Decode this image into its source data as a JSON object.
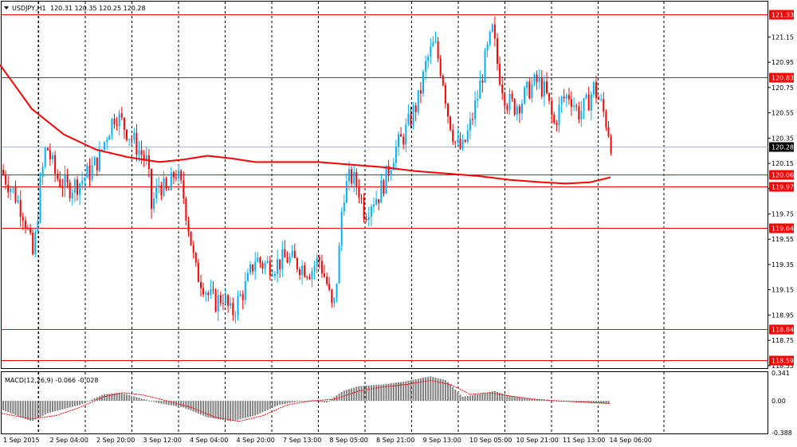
{
  "chart_data": {
    "type": "candlestick",
    "title": "USDJPY,H1",
    "ohlc_label": "120.31 120.35 120.25 120.28",
    "price_axis": {
      "ylim": [
        118.53,
        121.43
      ],
      "ticks": [
        "121.15",
        "120.95",
        "120.75",
        "120.55",
        "120.35",
        "120.15",
        "119.95",
        "119.75",
        "119.55",
        "119.35",
        "119.15",
        "118.95",
        "118.75",
        "118.55"
      ]
    },
    "time_axis": [
      "1 Sep 2015",
      "2 Sep 04:00",
      "2 Sep 20:00",
      "3 Sep 12:00",
      "4 Sep 04:00",
      "4 Sep 20:00",
      "7 Sep 13:00",
      "8 Sep 05:00",
      "8 Sep 21:00",
      "9 Sep 13:00",
      "10 Sep 05:00",
      "10 Sep 21:00",
      "11 Sep 13:00",
      "14 Sep 06:00"
    ],
    "current_price": "120.28",
    "levels": [
      "121.33",
      "120.83",
      "120.06",
      "119.97",
      "119.64",
      "118.84",
      "118.59"
    ],
    "ma_series": [
      [
        0,
        120.93
      ],
      [
        40,
        120.58
      ],
      [
        80,
        120.38
      ],
      [
        120,
        120.26
      ],
      [
        160,
        120.2
      ],
      [
        200,
        120.16
      ],
      [
        230,
        120.18
      ],
      [
        260,
        120.21
      ],
      [
        290,
        120.19
      ],
      [
        320,
        120.16
      ],
      [
        360,
        120.16
      ],
      [
        400,
        120.16
      ],
      [
        440,
        120.14
      ],
      [
        480,
        120.12
      ],
      [
        520,
        120.09
      ],
      [
        560,
        120.07
      ],
      [
        600,
        120.05
      ],
      [
        640,
        120.02
      ],
      [
        680,
        120.0
      ],
      [
        710,
        119.99
      ],
      [
        740,
        120.0
      ],
      [
        766,
        120.04
      ]
    ],
    "candles_keypoints": [
      [
        0,
        120.1
      ],
      [
        15,
        119.95
      ],
      [
        30,
        119.75
      ],
      [
        42,
        119.4
      ],
      [
        50,
        119.95
      ],
      [
        58,
        120.3
      ],
      [
        70,
        120.05
      ],
      [
        85,
        119.95
      ],
      [
        100,
        120.0
      ],
      [
        115,
        120.1
      ],
      [
        125,
        120.2
      ],
      [
        135,
        120.4
      ],
      [
        145,
        120.55
      ],
      [
        155,
        120.45
      ],
      [
        165,
        120.35
      ],
      [
        175,
        120.25
      ],
      [
        185,
        120.15
      ],
      [
        190,
        119.8
      ],
      [
        200,
        120.0
      ],
      [
        210,
        119.9
      ],
      [
        220,
        120.1
      ],
      [
        230,
        119.9
      ],
      [
        238,
        119.6
      ],
      [
        245,
        119.3
      ],
      [
        255,
        119.2
      ],
      [
        262,
        119.1
      ],
      [
        270,
        119.05
      ],
      [
        280,
        119.1
      ],
      [
        290,
        118.95
      ],
      [
        298,
        119.05
      ],
      [
        310,
        119.2
      ],
      [
        320,
        119.4
      ],
      [
        330,
        119.35
      ],
      [
        345,
        119.35
      ],
      [
        360,
        119.4
      ],
      [
        375,
        119.35
      ],
      [
        390,
        119.3
      ],
      [
        400,
        119.4
      ],
      [
        410,
        119.2
      ],
      [
        418,
        118.95
      ],
      [
        425,
        119.4
      ],
      [
        430,
        119.9
      ],
      [
        440,
        120.05
      ],
      [
        450,
        119.95
      ],
      [
        458,
        119.75
      ],
      [
        465,
        119.85
      ],
      [
        475,
        119.9
      ],
      [
        485,
        120.05
      ],
      [
        495,
        120.25
      ],
      [
        505,
        120.35
      ],
      [
        515,
        120.5
      ],
      [
        525,
        120.65
      ],
      [
        535,
        120.95
      ],
      [
        545,
        121.1
      ],
      [
        555,
        120.85
      ],
      [
        562,
        120.55
      ],
      [
        572,
        120.3
      ],
      [
        580,
        120.25
      ],
      [
        590,
        120.45
      ],
      [
        600,
        120.7
      ],
      [
        610,
        121.0
      ],
      [
        618,
        121.2
      ],
      [
        625,
        120.9
      ],
      [
        635,
        120.65
      ],
      [
        645,
        120.6
      ],
      [
        655,
        120.65
      ],
      [
        665,
        120.75
      ],
      [
        675,
        120.8
      ],
      [
        685,
        120.7
      ],
      [
        695,
        120.45
      ],
      [
        705,
        120.65
      ],
      [
        715,
        120.7
      ],
      [
        725,
        120.55
      ],
      [
        735,
        120.6
      ],
      [
        745,
        120.75
      ],
      [
        755,
        120.6
      ],
      [
        762,
        120.45
      ],
      [
        768,
        120.28
      ]
    ],
    "macd": {
      "label": "MACD(12,26,9) -0.066 -0.028",
      "ticks": [
        "0.341",
        "0.00",
        "-0.388"
      ],
      "ylim": [
        -0.388,
        0.341
      ],
      "hist_keypoints": [
        [
          0,
          -0.1
        ],
        [
          40,
          -0.25
        ],
        [
          60,
          -0.15
        ],
        [
          100,
          -0.05
        ],
        [
          130,
          0.08
        ],
        [
          150,
          0.1
        ],
        [
          170,
          0.05
        ],
        [
          200,
          -0.03
        ],
        [
          230,
          -0.08
        ],
        [
          260,
          -0.2
        ],
        [
          290,
          -0.25
        ],
        [
          320,
          -0.18
        ],
        [
          350,
          -0.05
        ],
        [
          380,
          0.0
        ],
        [
          410,
          -0.02
        ],
        [
          430,
          0.12
        ],
        [
          450,
          0.18
        ],
        [
          480,
          0.2
        ],
        [
          510,
          0.24
        ],
        [
          540,
          0.3
        ],
        [
          560,
          0.25
        ],
        [
          580,
          0.05
        ],
        [
          600,
          0.08
        ],
        [
          620,
          0.12
        ],
        [
          640,
          0.06
        ],
        [
          660,
          0.03
        ],
        [
          700,
          0.0
        ],
        [
          730,
          -0.02
        ],
        [
          766,
          -0.04
        ]
      ],
      "signal_keypoints": [
        [
          0,
          -0.15
        ],
        [
          40,
          -0.22
        ],
        [
          70,
          -0.18
        ],
        [
          100,
          -0.08
        ],
        [
          130,
          0.05
        ],
        [
          155,
          0.1
        ],
        [
          180,
          0.07
        ],
        [
          210,
          0.0
        ],
        [
          240,
          -0.08
        ],
        [
          270,
          -0.2
        ],
        [
          300,
          -0.25
        ],
        [
          330,
          -0.18
        ],
        [
          360,
          -0.05
        ],
        [
          390,
          0.0
        ],
        [
          420,
          0.02
        ],
        [
          450,
          0.12
        ],
        [
          480,
          0.17
        ],
        [
          510,
          0.2
        ],
        [
          540,
          0.25
        ],
        [
          565,
          0.2
        ],
        [
          590,
          0.08
        ],
        [
          615,
          0.1
        ],
        [
          640,
          0.06
        ],
        [
          670,
          0.02
        ],
        [
          700,
          0.0
        ],
        [
          740,
          -0.02
        ],
        [
          766,
          -0.03
        ]
      ]
    }
  },
  "colors": {
    "bull": "#00b0ff",
    "bear": "#ff0000",
    "ma": "#ff0000",
    "level": "#ff0000",
    "level_tag": "#ff0000",
    "current_line": "#a9b6c9",
    "current_tag": "#000000",
    "grid": "#000000",
    "macd_hist": "#808080",
    "macd_signal": "#ff0000"
  },
  "icons": {
    "symbol_menu": "triangle-down-icon"
  }
}
